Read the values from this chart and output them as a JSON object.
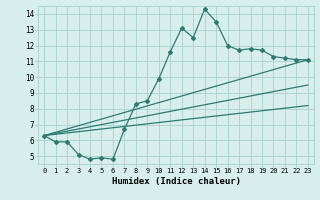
{
  "xlabel": "Humidex (Indice chaleur)",
  "ylabel": "",
  "xlim": [
    -0.5,
    23.5
  ],
  "ylim": [
    4.5,
    14.5
  ],
  "xticks": [
    0,
    1,
    2,
    3,
    4,
    5,
    6,
    7,
    8,
    9,
    10,
    11,
    12,
    13,
    14,
    15,
    16,
    17,
    18,
    19,
    20,
    21,
    22,
    23
  ],
  "yticks": [
    5,
    6,
    7,
    8,
    9,
    10,
    11,
    12,
    13,
    14
  ],
  "background_color": "#d7eeed",
  "grid_color": "#aed4d2",
  "line_color": "#2d7b6f",
  "main_line_x": [
    0,
    1,
    2,
    3,
    4,
    5,
    6,
    7,
    8,
    9,
    10,
    11,
    12,
    13,
    14,
    15,
    16,
    17,
    18,
    19,
    20,
    21,
    22,
    23
  ],
  "main_line_y": [
    6.3,
    5.9,
    5.9,
    5.1,
    4.8,
    4.9,
    4.8,
    6.7,
    8.3,
    8.5,
    9.9,
    11.6,
    13.1,
    12.5,
    14.3,
    13.5,
    12.0,
    11.7,
    11.8,
    11.7,
    11.3,
    11.2,
    11.1,
    11.1
  ],
  "trend1_x": [
    0,
    23
  ],
  "trend1_y": [
    6.3,
    11.1
  ],
  "trend2_x": [
    0,
    23
  ],
  "trend2_y": [
    6.3,
    9.5
  ],
  "trend3_x": [
    0,
    23
  ],
  "trend3_y": [
    6.3,
    8.2
  ]
}
